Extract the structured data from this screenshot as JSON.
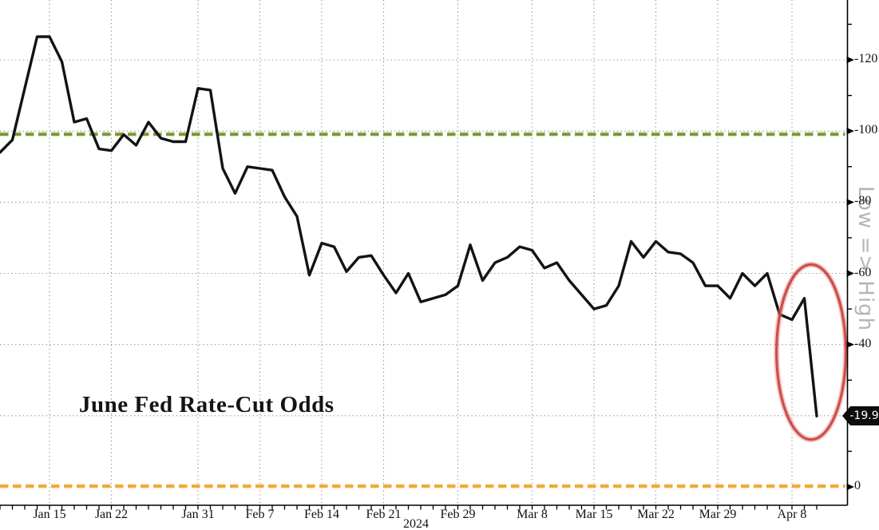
{
  "chart_data": {
    "type": "line",
    "title": "June Fed Rate-Cut Odds",
    "background_color": "#ffffff",
    "grid": {
      "on": true,
      "style": "dotted",
      "color": "#969696"
    },
    "x_axis": {
      "year_label": "2024",
      "tick_labels": [
        "Jan 15",
        "Jan 22",
        "Jan 31",
        "Feb 7",
        "Feb 14",
        "Feb 21",
        "Feb 29",
        "Mar 8",
        "Mar 15",
        "Mar 22",
        "Mar 29",
        "Apr 8"
      ],
      "tick_indices": [
        4,
        9,
        16,
        21,
        26,
        31,
        37,
        43,
        48,
        53,
        58,
        64
      ]
    },
    "y_axis": {
      "side": "right",
      "axis_label": "Low => High",
      "axis_label_color": "#b5b5b5",
      "tick_labels": [
        "-120",
        "-100",
        "-80",
        "-60",
        "-40",
        "0"
      ],
      "tick_values": [
        120,
        100,
        80,
        60,
        40,
        0
      ],
      "minor_tick_step": 10,
      "range": [
        0,
        137
      ]
    },
    "series": [
      {
        "name": "June Fed Rate-Cut Odds",
        "color": "#131313",
        "dates": [
          "Jan 9",
          "Jan 10",
          "Jan 11",
          "Jan 12",
          "Jan 15",
          "Jan 16",
          "Jan 17",
          "Jan 18",
          "Jan 19",
          "Jan 22",
          "Jan 23",
          "Jan 24",
          "Jan 25",
          "Jan 26",
          "Jan 29",
          "Jan 30",
          "Jan 31",
          "Feb 1",
          "Feb 2",
          "Feb 5",
          "Feb 6",
          "Feb 7",
          "Feb 8",
          "Feb 9",
          "Feb 12",
          "Feb 13",
          "Feb 14",
          "Feb 15",
          "Feb 16",
          "Feb 19",
          "Feb 20",
          "Feb 21",
          "Feb 22",
          "Feb 23",
          "Feb 26",
          "Feb 27",
          "Feb 28",
          "Feb 29",
          "Mar 1",
          "Mar 4",
          "Mar 5",
          "Mar 6",
          "Mar 7",
          "Mar 8",
          "Mar 11",
          "Mar 12",
          "Mar 13",
          "Mar 14",
          "Mar 15",
          "Mar 18",
          "Mar 19",
          "Mar 20",
          "Mar 21",
          "Mar 22",
          "Mar 25",
          "Mar 26",
          "Mar 27",
          "Mar 28",
          "Mar 29",
          "Apr 1",
          "Apr 2",
          "Apr 3",
          "Apr 4",
          "Apr 5",
          "Apr 8",
          "Apr 9",
          "Apr 10"
        ],
        "values": [
          94,
          97.5,
          112,
          126.5,
          126.5,
          119.5,
          102.5,
          103.5,
          95,
          94.5,
          99,
          96,
          102.5,
          98,
          97,
          97,
          112,
          111.5,
          89.5,
          82.5,
          90,
          89.5,
          89,
          81.5,
          76,
          59.5,
          68.5,
          67.5,
          60.5,
          64.5,
          65,
          59.5,
          54.5,
          60,
          52,
          53,
          54,
          56.5,
          68,
          58,
          63,
          64.5,
          67.5,
          66.5,
          61.5,
          63,
          58,
          54,
          50,
          51,
          56.5,
          69,
          64.5,
          69,
          66,
          65.5,
          63,
          56.5,
          56.5,
          53,
          60,
          56.5,
          60,
          48.5,
          47,
          53,
          19.9
        ]
      }
    ],
    "reference_lines": [
      {
        "name": "100 level",
        "value": 99.1,
        "color": "#76982c",
        "style": "dashed"
      },
      {
        "name": "0 level",
        "value": 0.2,
        "color": "#f0a62f",
        "style": "dashed"
      }
    ],
    "last_value_label": "-19.9",
    "last_value": 19.9,
    "badge_colors": {
      "background": "#0d0d0d",
      "text": "#ffffff"
    },
    "annotation_ellipse": {
      "center_index": 65.55,
      "center_value": 37.9,
      "rx_days": 2.8,
      "ry_value": 24.6,
      "color": "#c94747"
    }
  }
}
